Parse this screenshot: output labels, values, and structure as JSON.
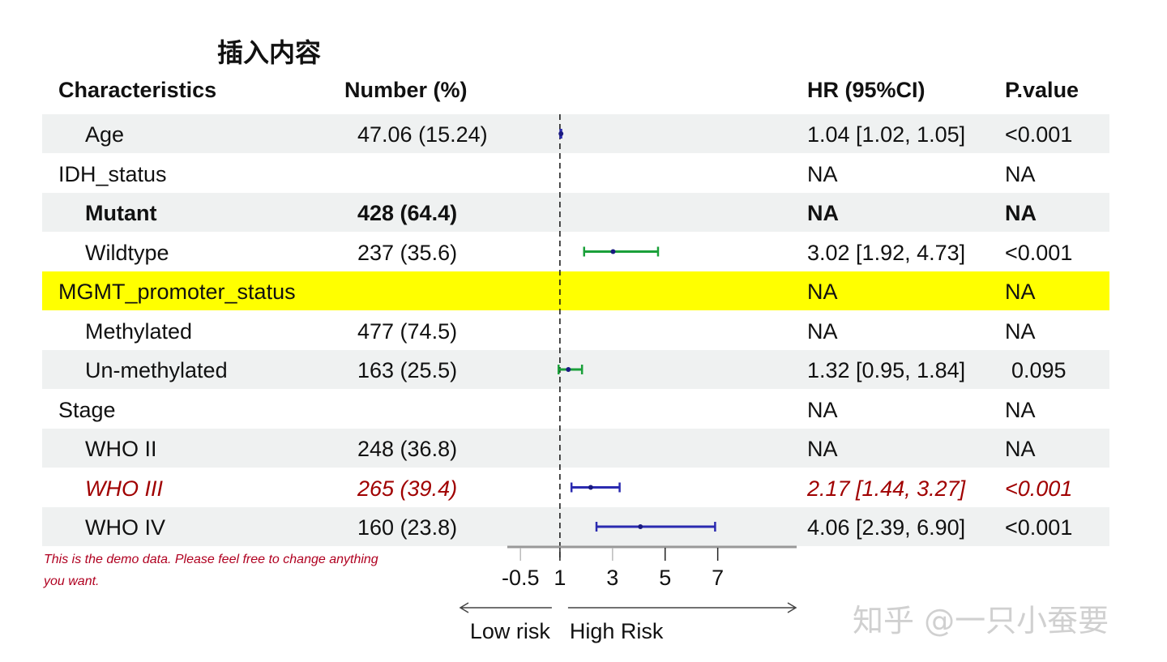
{
  "title": "插入内容",
  "headers": {
    "characteristics": "Characteristics",
    "number": "Number (%)",
    "hr": "HR (95%CI)",
    "p": "P.value"
  },
  "rows": [
    {
      "label": "Age",
      "number": "47.06 (15.24)",
      "hr": "1.04 [1.02, 1.05]",
      "p": "<0.001",
      "indent": true,
      "style": "shade",
      "est": 1.04,
      "lo": 1.02,
      "hi": 1.05,
      "color": "#2b2bb0"
    },
    {
      "label": "IDH_status",
      "number": "",
      "hr": "NA",
      "p": "NA",
      "indent": false,
      "style": ""
    },
    {
      "label": "Mutant",
      "number": "428 (64.4)",
      "hr": "NA",
      "p": "NA",
      "indent": true,
      "style": "shade bold"
    },
    {
      "label": "Wildtype",
      "number": "237 (35.6)",
      "hr": "3.02 [1.92, 4.73]",
      "p": "<0.001",
      "indent": true,
      "style": "",
      "est": 3.02,
      "lo": 1.92,
      "hi": 4.73,
      "color": "#1aa03a"
    },
    {
      "label": "MGMT_promoter_status",
      "number": "",
      "hr": "NA",
      "p": "NA",
      "indent": false,
      "style": "hl"
    },
    {
      "label": "Methylated",
      "number": "477 (74.5)",
      "hr": "NA",
      "p": "NA",
      "indent": true,
      "style": ""
    },
    {
      "label": "Un-methylated",
      "number": "163 (25.5)",
      "hr": "1.32 [0.95, 1.84]",
      "p": "0.095",
      "indent": true,
      "style": "shade",
      "est": 1.32,
      "lo": 0.95,
      "hi": 1.84,
      "color": "#1aa03a"
    },
    {
      "label": "Stage",
      "number": "",
      "hr": "NA",
      "p": "NA",
      "indent": false,
      "style": ""
    },
    {
      "label": "WHO II",
      "number": "248 (36.8)",
      "hr": "NA",
      "p": "NA",
      "indent": true,
      "style": "shade"
    },
    {
      "label": "WHO III",
      "number": "265 (39.4)",
      "hr": "2.17 [1.44, 3.27]",
      "p": "<0.001",
      "indent": true,
      "style": "red",
      "est": 2.17,
      "lo": 1.44,
      "hi": 3.27,
      "color": "#2b2bb0"
    },
    {
      "label": "WHO IV",
      "number": "160 (23.8)",
      "hr": "4.06 [2.39, 6.90]",
      "p": "<0.001",
      "indent": true,
      "style": "shade",
      "est": 4.06,
      "lo": 2.39,
      "hi": 6.9,
      "color": "#2b2bb0"
    }
  ],
  "note": "This is the demo data. Please feel free to change anything you want.",
  "watermark": "知乎 @一只小蚕要",
  "chart_data": {
    "type": "forest",
    "xlim": [
      -1,
      10
    ],
    "ticks": [
      -0.5,
      1,
      3,
      5,
      7
    ],
    "reference_line": 1,
    "arrow_labels": {
      "left": "Low risk",
      "right": "High Risk"
    }
  }
}
